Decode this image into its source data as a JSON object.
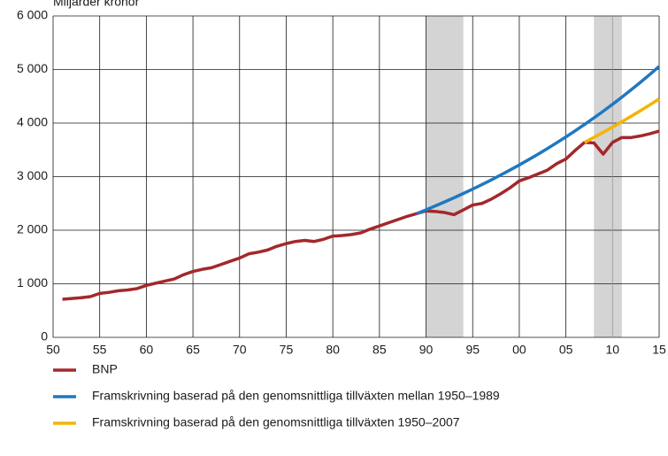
{
  "chart_data": {
    "type": "line",
    "y_label": "Miljarder kronor",
    "xlim": [
      1950,
      2015
    ],
    "ylim": [
      0,
      6000
    ],
    "xticks": [
      {
        "value": 1950,
        "label": "50"
      },
      {
        "value": 1955,
        "label": "55"
      },
      {
        "value": 1960,
        "label": "60"
      },
      {
        "value": 1965,
        "label": "65"
      },
      {
        "value": 1970,
        "label": "70"
      },
      {
        "value": 1975,
        "label": "75"
      },
      {
        "value": 1980,
        "label": "80"
      },
      {
        "value": 1985,
        "label": "85"
      },
      {
        "value": 1990,
        "label": "90"
      },
      {
        "value": 1995,
        "label": "95"
      },
      {
        "value": 2000,
        "label": "00"
      },
      {
        "value": 2005,
        "label": "05"
      },
      {
        "value": 2010,
        "label": "10"
      },
      {
        "value": 2015,
        "label": "15"
      }
    ],
    "yticks": [
      0,
      {
        "value": 1000,
        "label": "1 000"
      },
      {
        "value": 2000,
        "label": "2 000"
      },
      {
        "value": 3000,
        "label": "3 000"
      },
      {
        "value": 4000,
        "label": "4 000"
      },
      {
        "value": 5000,
        "label": "5 000"
      },
      {
        "value": 6000,
        "label": "6 000"
      }
    ],
    "grid": true,
    "shaded_regions": [
      [
        1990,
        1994
      ],
      [
        2008,
        2011
      ]
    ],
    "shade_color": "#d4d4d4",
    "series": [
      {
        "name": "BNP",
        "color": "#a3282b",
        "x": [
          1951,
          1952,
          1953,
          1954,
          1955,
          1956,
          1957,
          1958,
          1959,
          1960,
          1961,
          1962,
          1963,
          1964,
          1965,
          1966,
          1967,
          1968,
          1969,
          1970,
          1971,
          1972,
          1973,
          1974,
          1975,
          1976,
          1977,
          1978,
          1979,
          1980,
          1981,
          1982,
          1983,
          1984,
          1985,
          1986,
          1987,
          1988,
          1989,
          1990,
          1991,
          1992,
          1993,
          1994,
          1995,
          1996,
          1997,
          1998,
          1999,
          2000,
          2001,
          2002,
          2003,
          2004,
          2005,
          2006,
          2007,
          2008,
          2009,
          2010,
          2011,
          2012,
          2013,
          2014,
          2015
        ],
        "values": [
          710,
          725,
          740,
          760,
          820,
          840,
          870,
          885,
          910,
          970,
          1010,
          1050,
          1090,
          1170,
          1230,
          1270,
          1300,
          1360,
          1420,
          1480,
          1560,
          1590,
          1630,
          1700,
          1750,
          1790,
          1810,
          1790,
          1830,
          1890,
          1900,
          1920,
          1950,
          2020,
          2080,
          2140,
          2200,
          2260,
          2310,
          2360,
          2350,
          2330,
          2290,
          2380,
          2470,
          2500,
          2580,
          2680,
          2790,
          2920,
          2980,
          3050,
          3120,
          3240,
          3330,
          3490,
          3640,
          3630,
          3420,
          3640,
          3730,
          3730,
          3760,
          3800,
          3850
        ]
      },
      {
        "name": "Framskrivning baserad på den genomsnittliga tillväxten mellan 1950–1989",
        "color": "#1f78c0",
        "x": [
          1989,
          1990,
          1991,
          1992,
          1993,
          1994,
          1995,
          1996,
          1997,
          1998,
          1999,
          2000,
          2001,
          2002,
          2003,
          2004,
          2005,
          2006,
          2007,
          2008,
          2009,
          2010,
          2011,
          2012,
          2013,
          2014,
          2015
        ],
        "values": [
          2310,
          2381,
          2454,
          2529,
          2606,
          2686,
          2768,
          2853,
          2940,
          3030,
          3123,
          3218,
          3317,
          3418,
          3523,
          3631,
          3742,
          3856,
          3974,
          4096,
          4221,
          4350,
          4483,
          4621,
          4762,
          4908,
          5058
        ]
      },
      {
        "name": "Framskrivning baserad på den genomsnittliga tillväxten 1950–2007",
        "color": "#f5b400",
        "x": [
          2007,
          2008,
          2009,
          2010,
          2011,
          2012,
          2013,
          2014,
          2015
        ],
        "values": [
          3640,
          3733,
          3828,
          3925,
          4025,
          4127,
          4232,
          4340,
          4450
        ]
      }
    ]
  }
}
